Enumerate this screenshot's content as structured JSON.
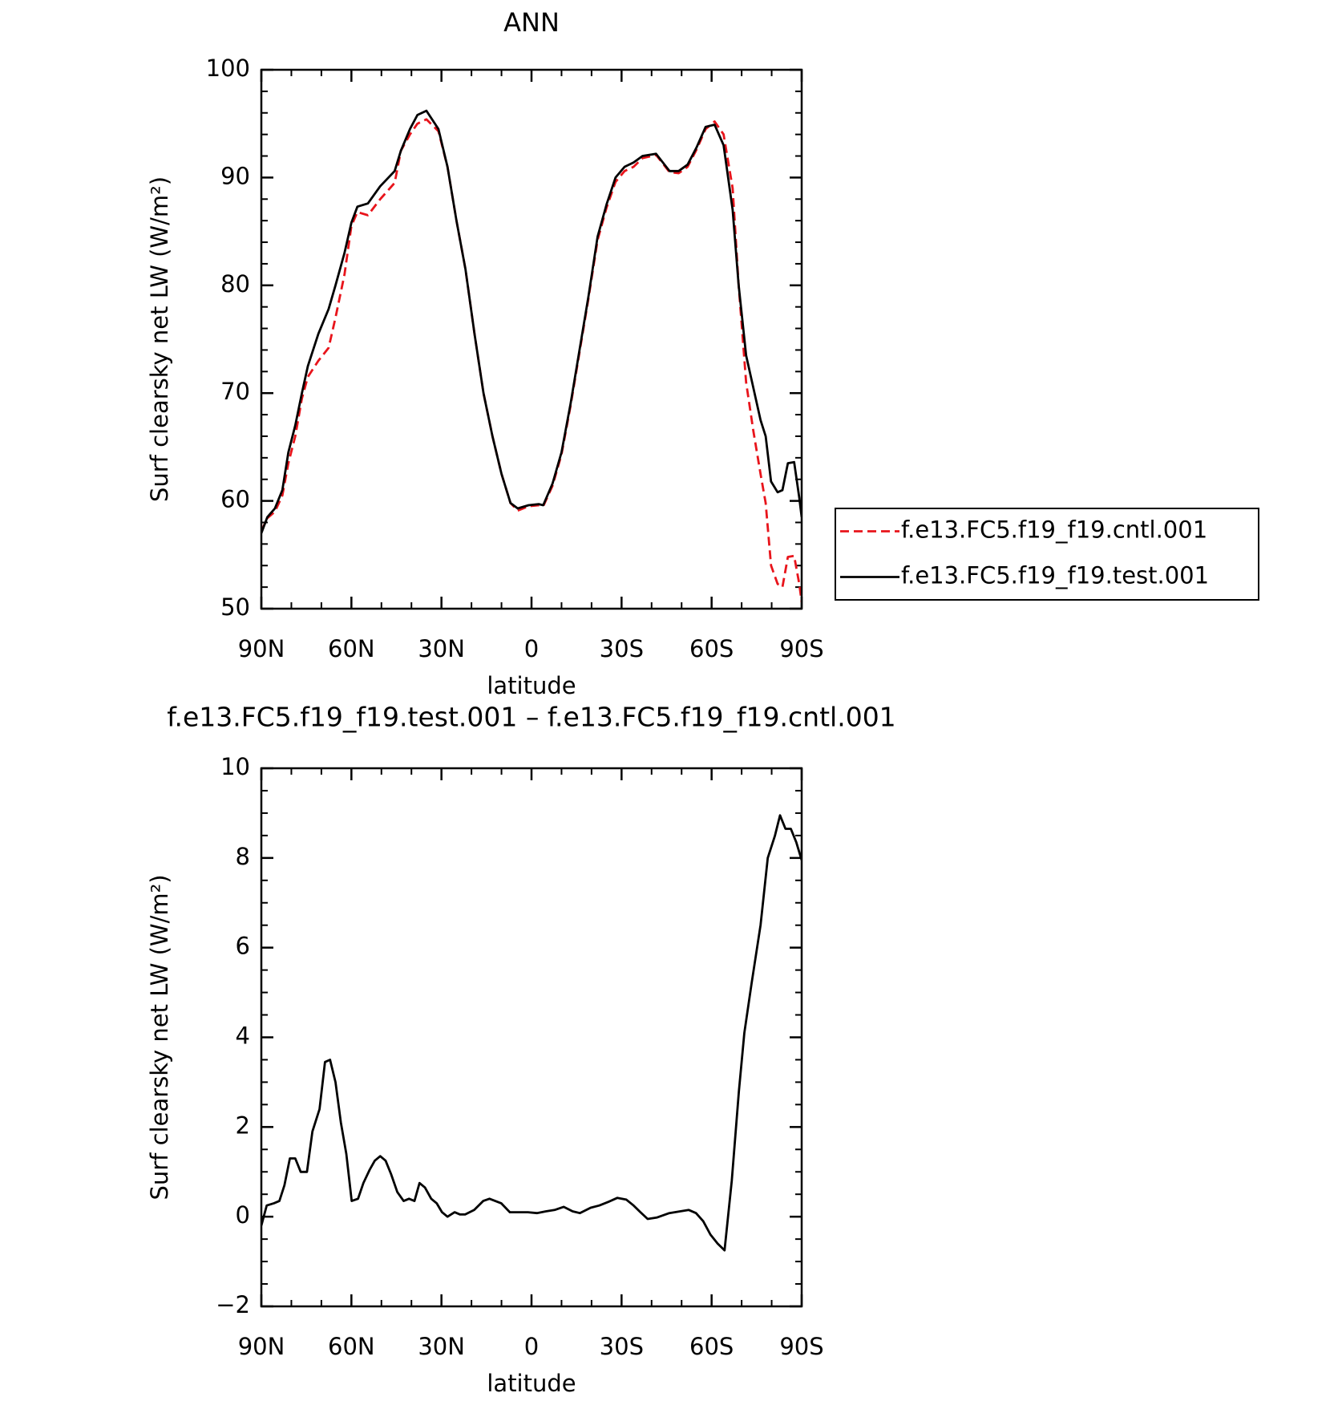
{
  "chart_data": [
    {
      "type": "line",
      "title": "ANN",
      "xlabel": "latitude",
      "ylabel": "Surf clearsky net LW (W/m²)",
      "x": [
        90,
        88,
        85.5,
        83,
        81,
        78.7,
        76.5,
        74.5,
        71,
        67.6,
        65.3,
        62.3,
        60,
        58,
        54.5,
        50.4,
        45.6,
        43.5,
        40.5,
        38,
        35,
        31,
        28,
        25,
        22,
        19,
        16,
        13,
        10,
        7,
        4.6,
        1,
        -2.4,
        -3.9,
        -7,
        -10,
        -13,
        -16,
        -19,
        -22,
        -25,
        -28,
        -31,
        -34,
        -37,
        -41.5,
        -46,
        -49,
        -52,
        -55,
        -58,
        -61,
        -64,
        -67,
        -69,
        -71.5,
        -73.9,
        -76.3,
        -78,
        -79.8,
        -82,
        -83.6,
        -85.4,
        -87.5,
        -89.2,
        -90
      ],
      "series": [
        {
          "name": "f.e13.FC5.f19_f19.cntl.001",
          "color": "#e8141b",
          "dash": true,
          "values": [
            57.2,
            58.4,
            59,
            60.5,
            63.5,
            66,
            69.5,
            71.5,
            73,
            74.2,
            77,
            81,
            85.5,
            86.8,
            86.5,
            88,
            89.5,
            92.5,
            94,
            95,
            95.4,
            94.3,
            91,
            86,
            81.5,
            75.5,
            70,
            66,
            62.5,
            59.8,
            59.1,
            59.5,
            59.6,
            59.5,
            61.4,
            64.3,
            68.8,
            73.8,
            78.8,
            84.2,
            87.2,
            89.6,
            90.6,
            91,
            91.8,
            92.1,
            90.5,
            90.4,
            91,
            92.6,
            94.5,
            95.2,
            94,
            89,
            80,
            71,
            66.5,
            62.5,
            59.8,
            54,
            52.3,
            52,
            54.8,
            54.9,
            52.3,
            50.6
          ]
        },
        {
          "name": "f.e13.FC5.f19_f19.test.001",
          "color": "#000000",
          "dash": false,
          "values": [
            57.0,
            58.5,
            59.3,
            61,
            64.5,
            67,
            70,
            72.5,
            75.5,
            77.8,
            80,
            83,
            85.8,
            87.3,
            87.6,
            89.2,
            90.6,
            92.5,
            94.5,
            95.8,
            96.2,
            94.5,
            91,
            86,
            81.5,
            75.5,
            70,
            66,
            62.5,
            59.8,
            59.3,
            59.6,
            59.7,
            59.6,
            61.6,
            64.5,
            69,
            74,
            79,
            84.5,
            87.5,
            90,
            91,
            91.4,
            92,
            92.2,
            90.6,
            90.6,
            91.2,
            92.8,
            94.7,
            94.9,
            93,
            87,
            80,
            73.5,
            70.5,
            67.5,
            66,
            61.8,
            60.8,
            61,
            63.5,
            63.6,
            60.3,
            58.5
          ]
        }
      ],
      "xlim": [
        90,
        -90
      ],
      "xticks": [
        {
          "value": 90,
          "label": "90N"
        },
        {
          "value": 60,
          "label": "60N"
        },
        {
          "value": 30,
          "label": "30N"
        },
        0,
        {
          "value": -30,
          "label": "30S"
        },
        {
          "value": -60,
          "label": "60S"
        },
        {
          "value": -90,
          "label": "90S"
        }
      ],
      "ylim": [
        50,
        100
      ],
      "yticks": [
        50,
        60,
        70,
        80,
        90,
        100
      ],
      "legend": "right"
    },
    {
      "type": "line",
      "title": "f.e13.FC5.f19_f19.test.001 – f.e13.FC5.f19_f19.cntl.001",
      "xlabel": "latitude",
      "ylabel": "Surf clearsky net LW (W/m²)",
      "x": [
        90,
        88.2,
        85.8,
        84.0,
        82.3,
        80.5,
        78.7,
        76.9,
        74.8,
        73.0,
        70.6,
        68.8,
        67.1,
        65.3,
        63.5,
        61.7,
        59.9,
        57.8,
        56.0,
        53.9,
        52.2,
        50.4,
        48.6,
        46.8,
        44.7,
        42.6,
        40.8,
        39.0,
        37.3,
        35.5,
        33.4,
        31.6,
        29.8,
        28.0,
        25.6,
        23.8,
        22.1,
        19.1,
        16.1,
        14.0,
        10.1,
        7.2,
        4.2,
        1.2,
        -1.8,
        -4.8,
        -7.7,
        -10.7,
        -13.7,
        -16.1,
        -19.7,
        -22.6,
        -25.6,
        -28.6,
        -31.6,
        -34.0,
        -36.3,
        -38.7,
        -41.7,
        -45.9,
        -49.5,
        -52.4,
        -54.8,
        -57.2,
        -59.6,
        -62.0,
        -64.3,
        -66.7,
        -69.1,
        -70.9,
        -73.3,
        -76.3,
        -78.7,
        -81.1,
        -82.8,
        -84.6,
        -86.4,
        -88.2,
        -90
      ],
      "series": [
        {
          "color": "#000000",
          "dash": false,
          "values": [
            -0.2,
            0.25,
            0.3,
            0.35,
            0.7,
            1.3,
            1.3,
            1.0,
            1.0,
            1.9,
            2.4,
            3.45,
            3.5,
            3.0,
            2.1,
            1.4,
            0.35,
            0.4,
            0.75,
            1.05,
            1.25,
            1.35,
            1.25,
            0.95,
            0.55,
            0.35,
            0.4,
            0.35,
            0.75,
            0.65,
            0.4,
            0.3,
            0.1,
            0.0,
            0.1,
            0.05,
            0.05,
            0.15,
            0.35,
            0.4,
            0.3,
            0.1,
            0.1,
            0.1,
            0.08,
            0.12,
            0.15,
            0.22,
            0.12,
            0.08,
            0.2,
            0.25,
            0.33,
            0.42,
            0.38,
            0.25,
            0.1,
            -0.05,
            -0.02,
            0.08,
            0.12,
            0.15,
            0.08,
            -0.1,
            -0.4,
            -0.6,
            -0.75,
            0.8,
            2.8,
            4.1,
            5.2,
            6.5,
            8.0,
            8.5,
            8.95,
            8.65,
            8.65,
            8.35,
            7.95
          ]
        }
      ],
      "xlim": [
        90,
        -90
      ],
      "xticks": [
        {
          "value": 90,
          "label": "90N"
        },
        {
          "value": 60,
          "label": "60N"
        },
        {
          "value": 30,
          "label": "30N"
        },
        0,
        {
          "value": -30,
          "label": "30S"
        },
        {
          "value": -60,
          "label": "60S"
        },
        {
          "value": -90,
          "label": "90S"
        }
      ],
      "ylim": [
        -2,
        10
      ],
      "yticks": [
        {
          "value": -2,
          "label": "−2"
        },
        0,
        2,
        4,
        6,
        8,
        10
      ]
    }
  ]
}
